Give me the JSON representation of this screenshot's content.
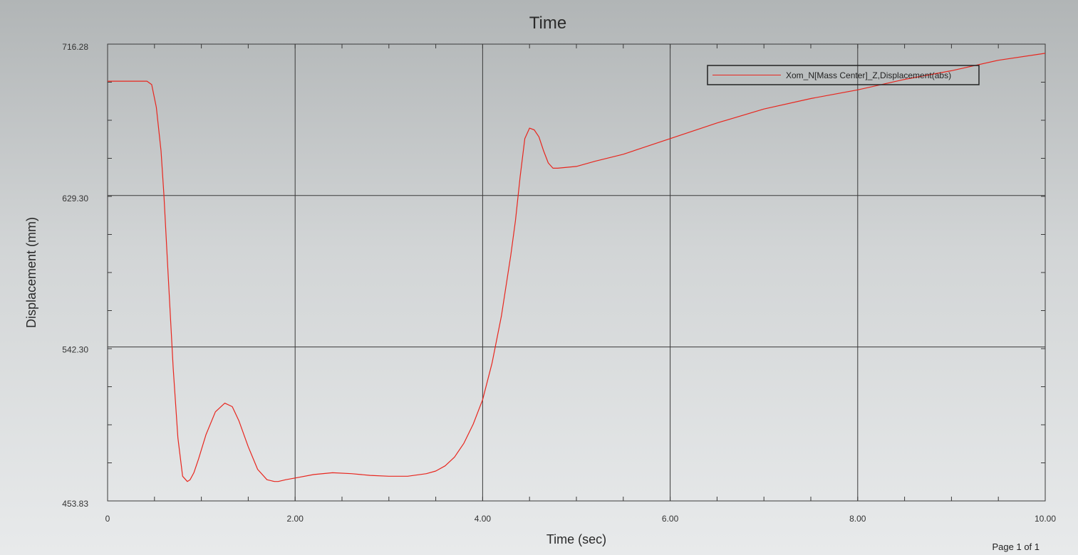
{
  "chart_data": {
    "type": "line",
    "title": "Time",
    "xlabel": "Time (sec)",
    "ylabel": "Displacement (mm)",
    "xlim": [
      0,
      10
    ],
    "ylim": [
      453.83,
      716.28
    ],
    "x_ticks": [
      "0",
      "2.00",
      "4.00",
      "6.00",
      "8.00",
      "10.00"
    ],
    "x_tick_values": [
      0,
      2,
      4,
      6,
      8,
      10
    ],
    "y_ticks": [
      "453.83",
      "542.30",
      "629.30",
      "716.28"
    ],
    "y_tick_values": [
      453.83,
      542.3,
      629.3,
      716.28
    ],
    "grid": true,
    "legend_position": "top-right",
    "colors": {
      "series": "#e8261e",
      "grid": "#3a3a3a"
    },
    "series": [
      {
        "name": "Xom_N[Mass Center]_Z,Displacement(abs)",
        "x": [
          0,
          0.3,
          0.42,
          0.47,
          0.52,
          0.57,
          0.6,
          0.65,
          0.7,
          0.75,
          0.8,
          0.85,
          0.88,
          0.92,
          0.97,
          1.05,
          1.15,
          1.25,
          1.33,
          1.4,
          1.5,
          1.6,
          1.7,
          1.78,
          1.82,
          1.9,
          2.0,
          2.2,
          2.4,
          2.6,
          2.8,
          3.0,
          3.2,
          3.4,
          3.5,
          3.6,
          3.7,
          3.8,
          3.9,
          4.0,
          4.1,
          4.2,
          4.3,
          4.35,
          4.4,
          4.45,
          4.5,
          4.55,
          4.6,
          4.65,
          4.7,
          4.75,
          4.8,
          5.0,
          5.2,
          5.5,
          6.0,
          6.5,
          7.0,
          7.5,
          8.0,
          8.5,
          9.0,
          9.5,
          10.0
        ],
        "y": [
          695,
          695,
          695,
          693,
          680,
          655,
          630,
          580,
          530,
          490,
          468,
          465,
          466,
          470,
          478,
          492,
          505,
          510,
          508,
          500,
          485,
          472,
          466,
          465,
          465,
          466,
          467,
          469,
          470,
          469.5,
          468.5,
          468,
          468,
          469.5,
          471,
          474,
          479,
          487,
          498,
          512,
          533,
          560,
          595,
          615,
          640,
          662,
          668,
          667,
          663,
          655,
          648,
          645,
          645,
          646,
          649,
          653,
          662,
          671,
          679,
          685,
          690,
          696,
          701,
          707,
          711
        ]
      }
    ],
    "page_indicator": "Page 1 of 1"
  }
}
